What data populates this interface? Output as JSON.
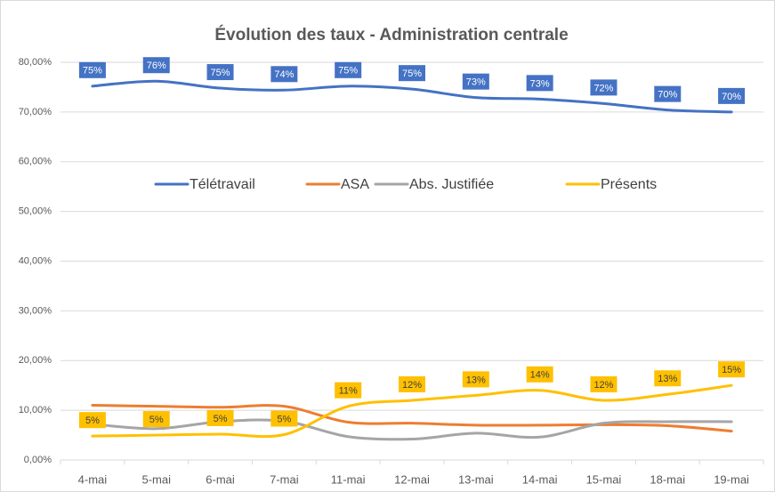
{
  "chart_data": {
    "type": "line",
    "title": "Évolution des taux - Administration centrale",
    "categories": [
      "4-mai",
      "5-mai",
      "6-mai",
      "7-mai",
      "11-mai",
      "12-mai",
      "13-mai",
      "14-mai",
      "15-mai",
      "18-mai",
      "19-mai"
    ],
    "series": [
      {
        "name": "Télétravail",
        "color": "#4472c4",
        "values": [
          75.2,
          76.2,
          74.8,
          74.4,
          75.2,
          74.6,
          72.9,
          72.6,
          71.7,
          70.4,
          70.0
        ],
        "value_labels": [
          "75%",
          "76%",
          "75%",
          "74%",
          "75%",
          "75%",
          "73%",
          "73%",
          "72%",
          "70%",
          "70%"
        ]
      },
      {
        "name": "ASA",
        "color": "#ed7d31",
        "values": [
          11.0,
          10.8,
          10.6,
          10.8,
          7.6,
          7.4,
          7.0,
          7.0,
          7.1,
          6.9,
          5.8
        ]
      },
      {
        "name": "Abs. Justifiée",
        "color": "#a5a5a5",
        "values": [
          7.2,
          6.3,
          7.7,
          7.8,
          4.7,
          4.2,
          5.4,
          4.6,
          7.4,
          7.7,
          7.7
        ]
      },
      {
        "name": "Présents",
        "color": "#ffc000",
        "values": [
          4.8,
          5.0,
          5.2,
          5.1,
          10.8,
          12.0,
          13.0,
          14.0,
          12.0,
          13.2,
          15.0
        ],
        "value_labels": [
          "5%",
          "5%",
          "5%",
          "5%",
          "11%",
          "12%",
          "13%",
          "14%",
          "12%",
          "13%",
          "15%"
        ]
      }
    ],
    "ylim": [
      0,
      80
    ],
    "yticks": [
      {
        "value": 0,
        "label": "0,00%"
      },
      {
        "value": 10,
        "label": "10,00%"
      },
      {
        "value": 20,
        "label": "20,00%"
      },
      {
        "value": 30,
        "label": "30,00%"
      },
      {
        "value": 40,
        "label": "40,00%"
      },
      {
        "value": 50,
        "label": "50,00%"
      },
      {
        "value": 60,
        "label": "60,00%"
      },
      {
        "value": 70,
        "label": "70,00%"
      },
      {
        "value": 80,
        "label": "80,00%"
      }
    ],
    "grid": true,
    "legend": "center"
  }
}
